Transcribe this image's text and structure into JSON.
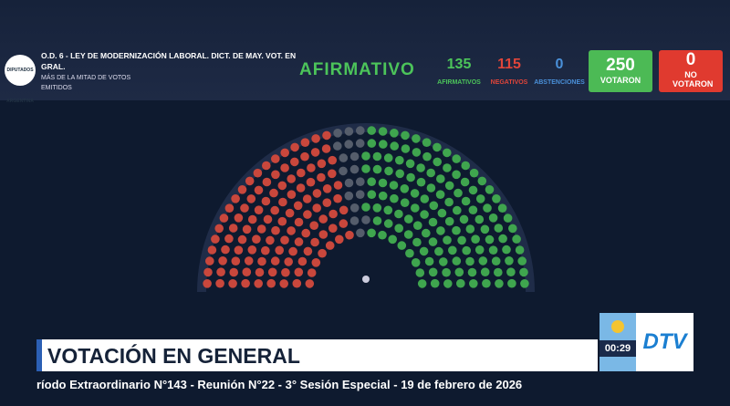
{
  "header": {
    "logo": "DIPUTADOS ARGENTINA",
    "title": "O.D. 6 - LEY DE MODERNIZACIÓN LABORAL. DICT. DE MAY. VOT. EN GRAL.",
    "subtitle": "MÁS DE LA MITAD DE VOTOS EMITIDOS",
    "result": "AFIRMATIVO",
    "tallies": [
      {
        "value": 135,
        "label": "AFIRMATIVOS"
      },
      {
        "value": 115,
        "label": "NEGATIVOS"
      },
      {
        "value": 0,
        "label": "ABSTENCIONES"
      }
    ],
    "voted": {
      "value": 250,
      "label": "VOTARON"
    },
    "not_voted": {
      "value": 0,
      "label": "NO VOTARON"
    }
  },
  "lower_third": {
    "title": "VOTACIÓN EN GENERAL",
    "ticker": "ríodo Extraordinario N°143 - Reunión N°22 - 3° Sesión Especial - 19 de febrero de 2026",
    "timer": "00:29",
    "channel": "DTV"
  }
}
